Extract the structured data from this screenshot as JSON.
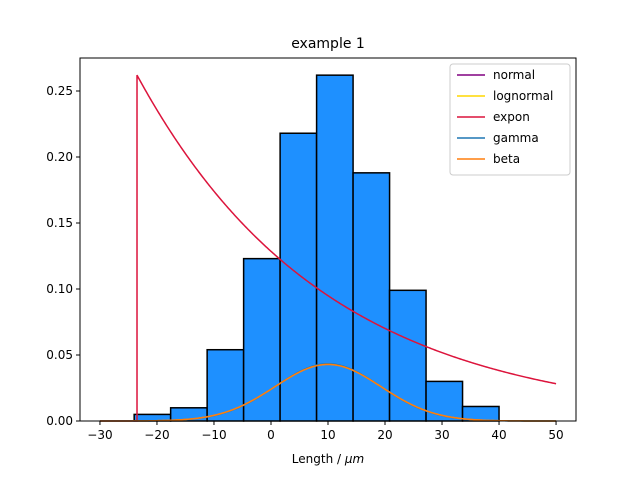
{
  "chart_data": {
    "type": "bar",
    "title": "example 1",
    "xlabel": "Length  /  ",
    "xlabel_unit": "μm",
    "ylabel": "",
    "xlim": [
      -33.5,
      53.5
    ],
    "ylim": [
      0,
      0.275
    ],
    "x_ticks": [
      -30,
      -20,
      -10,
      0,
      10,
      20,
      30,
      40,
      50
    ],
    "y_ticks": [
      0.0,
      0.05,
      0.1,
      0.15,
      0.2,
      0.25
    ],
    "x_tick_labels": [
      "−30",
      "−20",
      "−10",
      "0",
      "10",
      "20",
      "30",
      "40",
      "50"
    ],
    "y_tick_labels": [
      "0.00",
      "0.05",
      "0.10",
      "0.15",
      "0.20",
      "0.25"
    ],
    "grid": false,
    "legend_position": "top-right",
    "histogram": {
      "bin_edges": [
        -24.0,
        -17.6,
        -11.2,
        -4.8,
        1.6,
        8.0,
        14.4,
        20.8,
        27.2,
        33.6,
        40.0
      ],
      "values": [
        0.005,
        0.01,
        0.054,
        0.123,
        0.218,
        0.262,
        0.188,
        0.099,
        0.03,
        0.011
      ],
      "color": "#1e90ff"
    },
    "series": [
      {
        "name": "normal",
        "color": "#800080",
        "kind": "normal",
        "mu": 10.0,
        "sigma": 9.3
      },
      {
        "name": "lognormal",
        "color": "#ffd700",
        "kind": "normal",
        "mu": 10.0,
        "sigma": 9.3
      },
      {
        "name": "expon",
        "color": "#dc143c",
        "kind": "expon",
        "loc": -23.5,
        "peak": 0.262,
        "scale": 33.0
      },
      {
        "name": "gamma",
        "color": "#1f77b4",
        "kind": "normal",
        "mu": 10.0,
        "sigma": 9.2
      },
      {
        "name": "beta",
        "color": "#ff7f0e",
        "kind": "normal",
        "mu": 10.0,
        "sigma": 9.3
      }
    ],
    "curve_x_range": [
      -30,
      50
    ]
  }
}
